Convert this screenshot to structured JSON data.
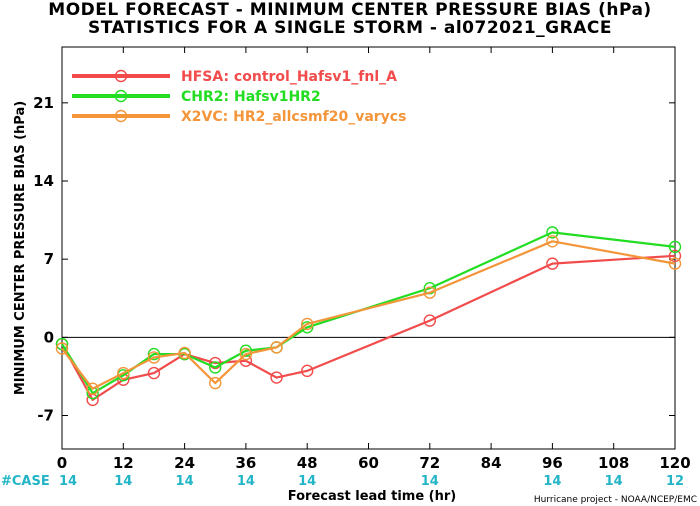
{
  "chart_data": {
    "type": "line",
    "title": "MODEL FORECAST - MINIMUM CENTER PRESSURE BIAS (hPa)",
    "subtitle": "STATISTICS FOR A SINGLE STORM - al072021_GRACE",
    "xlabel": "Forecast lead time (hr)",
    "ylabel": "MINIMUM CENTER PRESSURE BIAS (hPa)",
    "xlim": [
      0,
      120
    ],
    "ylim": [
      -10,
      26
    ],
    "xticks": [
      0,
      12,
      24,
      36,
      48,
      60,
      72,
      84,
      96,
      108,
      120
    ],
    "yticks": [
      -7,
      0,
      7,
      14,
      21
    ],
    "zero_line": true,
    "legend_position": "top-left",
    "case_label": "#CASE",
    "cases": [
      {
        "x": 0,
        "n": "14"
      },
      {
        "x": 12,
        "n": "14"
      },
      {
        "x": 24,
        "n": "14"
      },
      {
        "x": 36,
        "n": "14"
      },
      {
        "x": 48,
        "n": "14"
      },
      {
        "x": 72,
        "n": "14"
      },
      {
        "x": 96,
        "n": "14"
      },
      {
        "x": 108,
        "n": "14"
      },
      {
        "x": 120,
        "n": "12"
      }
    ],
    "series": [
      {
        "name": "HFSA: control_Hafsv1_fnl_A",
        "color": "#f24b4b",
        "x": [
          0,
          6,
          12,
          18,
          24,
          30,
          36,
          42,
          48,
          72,
          96,
          120
        ],
        "values": [
          -0.6,
          -5.6,
          -3.8,
          -3.2,
          -1.5,
          -2.3,
          -2.1,
          -3.6,
          -3.0,
          1.5,
          6.6,
          7.3
        ]
      },
      {
        "name": "CHR2: Hafsv1HR2",
        "color": "#22dd22",
        "x": [
          0,
          6,
          12,
          18,
          24,
          30,
          36,
          42,
          48,
          72,
          96,
          120
        ],
        "values": [
          -0.6,
          -5.0,
          -3.4,
          -1.5,
          -1.5,
          -2.7,
          -1.2,
          -0.9,
          0.9,
          4.4,
          9.4,
          8.1
        ]
      },
      {
        "name": "X2VC: HR2_allcsmf20_varycs",
        "color": "#f4953a",
        "x": [
          0,
          6,
          12,
          18,
          24,
          30,
          36,
          42,
          48,
          72,
          96,
          120
        ],
        "values": [
          -1.0,
          -4.6,
          -3.2,
          -1.8,
          -1.4,
          -4.1,
          -1.5,
          -0.9,
          1.2,
          4.0,
          8.6,
          6.6
        ]
      }
    ],
    "credit": "Hurricane project - NOAA/NCEP/EMC"
  }
}
